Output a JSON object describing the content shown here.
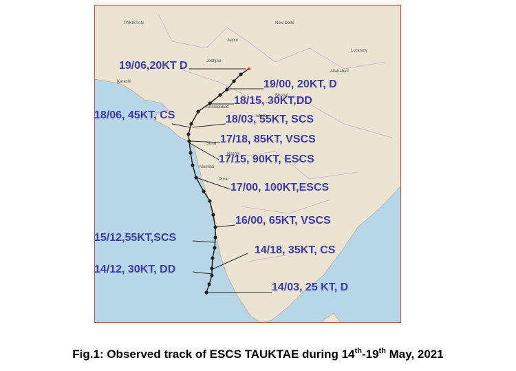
{
  "map": {
    "places": [
      "PAKISTAN",
      "Karachi",
      "New Delhi",
      "Jaipur",
      "Lucknow",
      "Allahabad",
      "Jodhpur",
      "Ahmedabad",
      "Indore",
      "Surat",
      "Nashik",
      "Mumbai",
      "Pune",
      "Bhopal"
    ],
    "track_labels": [
      "19/06,20KT D",
      "19/00, 20KT, D",
      "18/15, 30KT,DD",
      "18/06, 45KT, CS",
      "18/03, 55KT, SCS",
      "17/18, 85KT, VSCS",
      "17/15, 90KT, ESCS",
      "17/00, 100KT,ESCS",
      "16/00, 65KT, VSCS",
      "15/12,55KT,SCS",
      "14/18, 35KT, CS",
      "14/12, 30KT, DD",
      "14/03, 25 KT, D"
    ]
  },
  "caption": {
    "parts": [
      "Fig.1: Observed track of ESCS TAUKTAE during 14",
      "th",
      "-19",
      "th",
      " May, 2021"
    ]
  }
}
